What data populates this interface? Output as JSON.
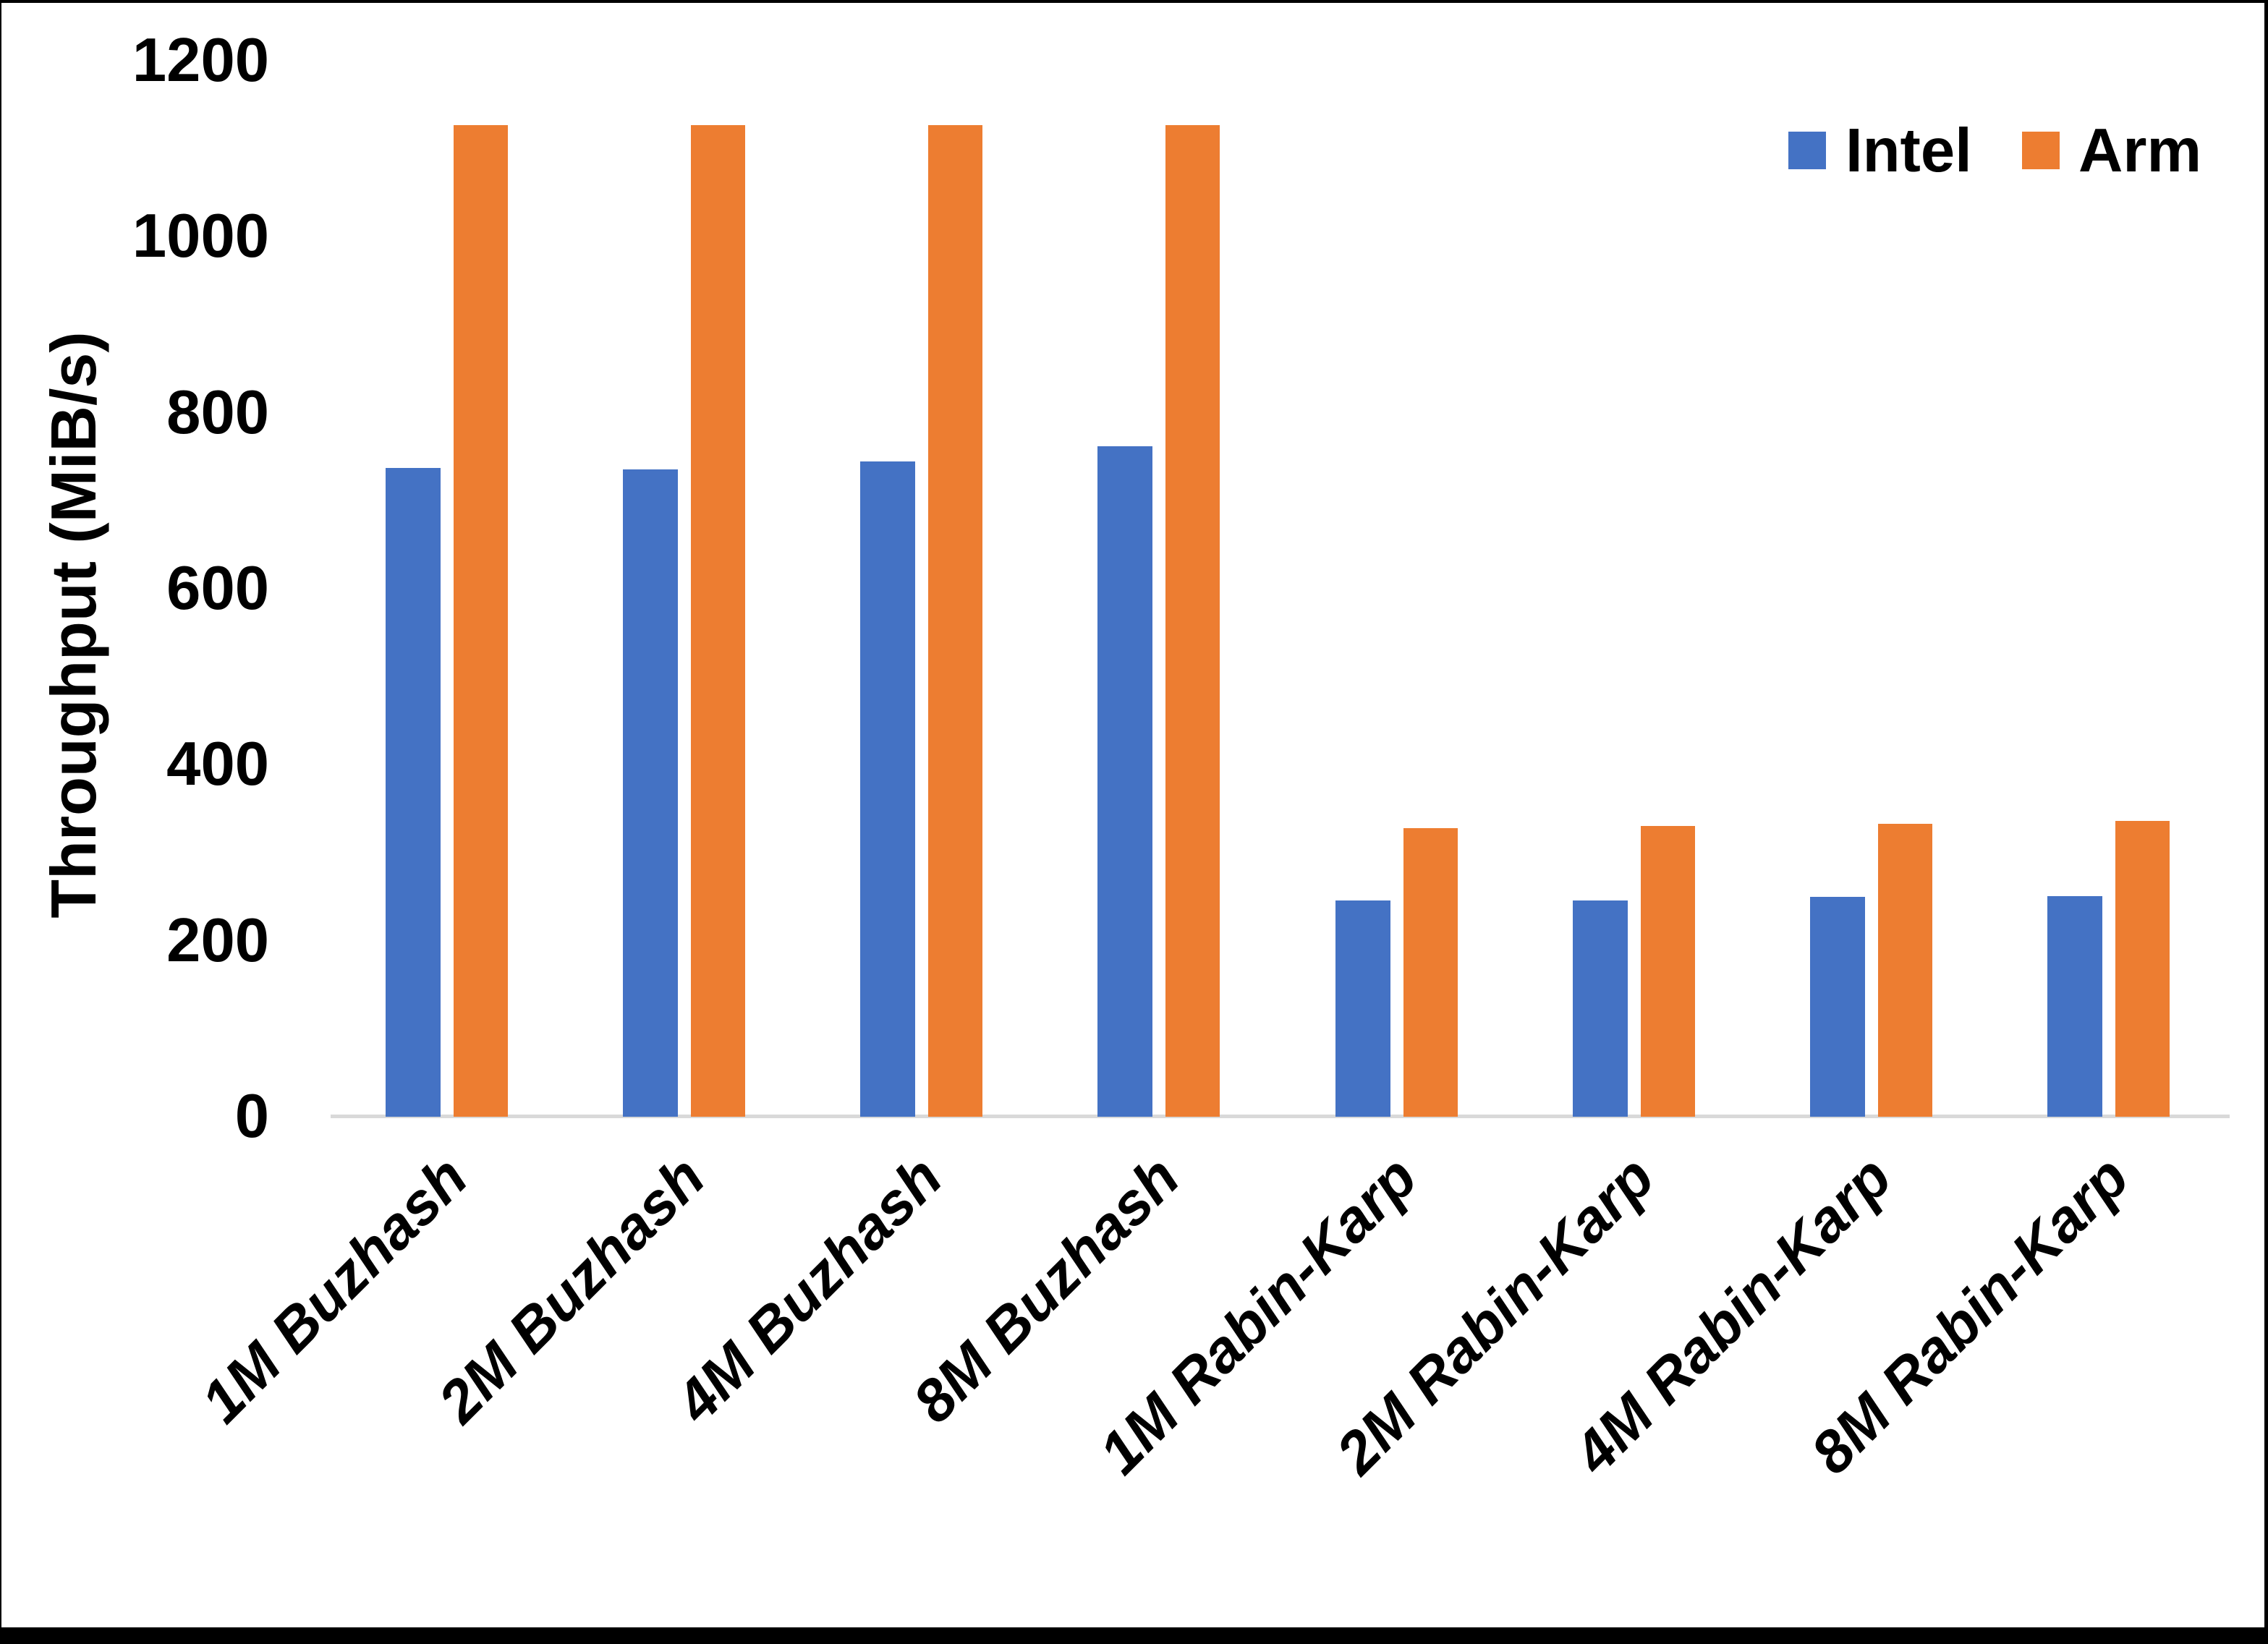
{
  "chart_data": {
    "type": "bar",
    "title": "",
    "xlabel": "",
    "ylabel": "Throughput (MiB/s)",
    "ylim": [
      0,
      1200
    ],
    "yticks": [
      0,
      200,
      400,
      600,
      800,
      1000,
      1200
    ],
    "grid": false,
    "legend_position": "top-right",
    "categories": [
      "1M Buzhash",
      "2M Buzhash",
      "4M Buzhash",
      "8M Buzhash",
      "1M Rabin-Karp",
      "2M Rabin-Karp",
      "4M Rabin-Karp",
      "8M Rabin-Karp"
    ],
    "series": [
      {
        "name": "Intel",
        "color": "#4472C4",
        "values": [
          737,
          736,
          745,
          762,
          246,
          246,
          250,
          251
        ]
      },
      {
        "name": "Arm",
        "color": "#ED7D31",
        "values": [
          1127,
          1127,
          1127,
          1127,
          328,
          330,
          333,
          336
        ]
      }
    ]
  },
  "colors": {
    "axis_line": "#D9D9D9",
    "text": "#000000",
    "frame": "#000000",
    "background": "#FFFFFF"
  }
}
